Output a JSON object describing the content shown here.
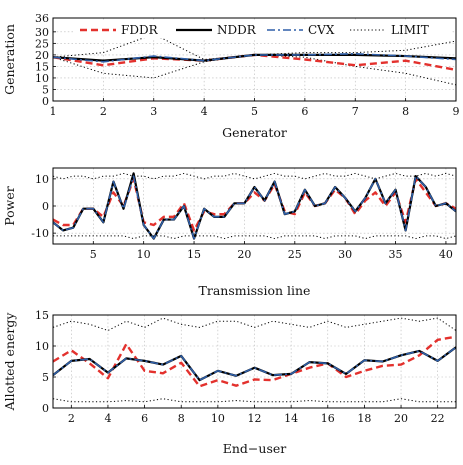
{
  "colors": {
    "fddr": "#e3312d",
    "nddr": "#000000",
    "cvx": "#2f5fa8",
    "limit": "#000000"
  },
  "legend": {
    "placement": "top, inside first panel",
    "entries": [
      {
        "key": "fddr",
        "label": "FDDR",
        "style": "dashed",
        "color": "#e3312d"
      },
      {
        "key": "nddr",
        "label": "NDDR",
        "style": "solid",
        "color": "#000000"
      },
      {
        "key": "cvx",
        "label": "CVX",
        "style": "dashdot",
        "color": "#2f5fa8"
      },
      {
        "key": "limit",
        "label": "LIMIT",
        "style": "dotted",
        "color": "#000000"
      }
    ]
  },
  "chart_data": [
    {
      "type": "line",
      "xlabel": "Generator",
      "ylabel": "Generation",
      "xlim": [
        1,
        9
      ],
      "ylim": [
        0,
        36
      ],
      "xticks": [
        1,
        2,
        3,
        4,
        5,
        6,
        7,
        8,
        9
      ],
      "yticks": [
        0,
        5,
        10,
        15,
        20,
        25,
        30,
        36
      ],
      "grid": true,
      "x": [
        1,
        2,
        3,
        4,
        5,
        6,
        7,
        8,
        9
      ],
      "series": [
        {
          "name": "FDDR",
          "key": "fddr",
          "values": [
            19,
            15.5,
            18.5,
            17.5,
            20,
            18,
            15.5,
            17.5,
            13.5
          ]
        },
        {
          "name": "NDDR",
          "key": "nddr",
          "values": [
            19,
            17.5,
            19,
            17.5,
            20,
            20,
            20,
            19.5,
            18.5
          ]
        },
        {
          "name": "CVX",
          "key": "cvx",
          "values": [
            19,
            17,
            19.5,
            17.5,
            20,
            20,
            20.5,
            19.5,
            18
          ]
        },
        {
          "name": "LIMIT",
          "key": "limit",
          "values": [
            19,
            21,
            29,
            18,
            20,
            21,
            21,
            22,
            26
          ]
        },
        {
          "name": "LIMIT",
          "key": "limit",
          "values": [
            19,
            12,
            10,
            17,
            20,
            19,
            15,
            12,
            7
          ]
        }
      ]
    },
    {
      "type": "line",
      "xlabel": "Transmission line",
      "ylabel": "Power",
      "xlim": [
        1,
        41
      ],
      "ylim": [
        -14,
        14
      ],
      "xticks": [
        5,
        10,
        15,
        20,
        25,
        30,
        35,
        40
      ],
      "yticks": [
        -10,
        0,
        10
      ],
      "grid": true,
      "x": [
        1,
        2,
        3,
        4,
        5,
        6,
        7,
        8,
        9,
        10,
        11,
        12,
        13,
        14,
        15,
        16,
        17,
        18,
        19,
        20,
        21,
        22,
        23,
        24,
        25,
        26,
        27,
        28,
        29,
        30,
        31,
        32,
        33,
        34,
        35,
        36,
        37,
        38,
        39,
        40,
        41
      ],
      "series": [
        {
          "name": "FDDR",
          "key": "fddr",
          "values": [
            -5,
            -7,
            -7,
            -1,
            -1,
            -4,
            5,
            0,
            10,
            -6,
            -7,
            -4,
            -4,
            1,
            -9,
            -2,
            -3,
            -3,
            1,
            1,
            5,
            2,
            8,
            -2,
            -3,
            5,
            0,
            1,
            6,
            3,
            -3,
            2,
            5,
            0,
            5,
            -6,
            10,
            5,
            0,
            1,
            -1
          ]
        },
        {
          "name": "NDDR",
          "key": "nddr",
          "values": [
            -6,
            -9,
            -8,
            -1,
            -1,
            -6,
            9,
            -1,
            12,
            -7,
            -12,
            -5,
            -5,
            0,
            -12,
            -1,
            -4,
            -4,
            1,
            1,
            7,
            2,
            9,
            -3,
            -2,
            6,
            0,
            1,
            7,
            3,
            -2,
            3,
            10,
            1,
            6,
            -9,
            11,
            7,
            0,
            1,
            -2
          ]
        },
        {
          "name": "CVX",
          "key": "cvx",
          "values": [
            -6,
            -9,
            -8,
            -1,
            -1,
            -6,
            9,
            -1,
            11,
            -7,
            -12,
            -5,
            -5,
            0,
            -12,
            -1,
            -4,
            -4,
            1,
            1,
            7,
            2,
            9,
            -3,
            -2,
            6,
            0,
            1,
            7,
            3,
            -2,
            3,
            10,
            1,
            6,
            -9,
            11,
            7,
            0,
            1,
            -2
          ]
        },
        {
          "name": "LIMIT",
          "key": "limit",
          "values": [
            11,
            10,
            11,
            11,
            10,
            11,
            11,
            12,
            11,
            11,
            10,
            11,
            11,
            12,
            11,
            10,
            11,
            11,
            12,
            11,
            10,
            11,
            12,
            11,
            11,
            10,
            11,
            12,
            11,
            11,
            12,
            11,
            10,
            11,
            12,
            11,
            11,
            12,
            11,
            12,
            11
          ]
        },
        {
          "name": "LIMIT",
          "key": "limit",
          "values": [
            -11,
            -11,
            -11,
            -11,
            -11,
            -11,
            -11,
            -11,
            -12,
            -11,
            -11,
            -11,
            -12,
            -11,
            -11,
            -11,
            -11,
            -12,
            -11,
            -11,
            -11,
            -11,
            -12,
            -11,
            -11,
            -11,
            -11,
            -12,
            -11,
            -11,
            -11,
            -12,
            -11,
            -11,
            -11,
            -11,
            -12,
            -11,
            -11,
            -12,
            -11
          ]
        }
      ]
    },
    {
      "type": "line",
      "xlabel": "End−user",
      "ylabel": "Allotted energy",
      "xlim": [
        1,
        23
      ],
      "ylim": [
        0,
        15
      ],
      "xticks": [
        2,
        4,
        6,
        8,
        10,
        12,
        14,
        16,
        18,
        20,
        22
      ],
      "yticks": [
        0,
        5,
        10,
        15
      ],
      "grid": true,
      "x": [
        1,
        2,
        3,
        4,
        5,
        6,
        7,
        8,
        9,
        10,
        11,
        12,
        13,
        14,
        15,
        16,
        17,
        18,
        19,
        20,
        21,
        22,
        23
      ],
      "series": [
        {
          "name": "FDDR",
          "key": "fddr",
          "values": [
            7.5,
            9.3,
            7.2,
            4.8,
            10.3,
            6,
            5.6,
            7.3,
            3.5,
            4.5,
            3.6,
            4.6,
            4.5,
            5.5,
            6.5,
            7.2,
            5,
            6,
            6.8,
            7,
            8.5,
            11,
            11.5
          ]
        },
        {
          "name": "NDDR",
          "key": "nddr",
          "values": [
            5.3,
            7.6,
            7.9,
            5.7,
            8,
            7.6,
            7,
            8.4,
            4.5,
            6,
            5.2,
            6.5,
            5.3,
            5.5,
            7.4,
            7.2,
            5.5,
            7.7,
            7.5,
            8.5,
            9.2,
            7.6,
            9.8
          ]
        },
        {
          "name": "CVX",
          "key": "cvx",
          "values": [
            5.3,
            7.6,
            7.9,
            5.7,
            8,
            7.6,
            7,
            8.4,
            4.5,
            6,
            5.2,
            6.5,
            5.3,
            5.5,
            7.4,
            7.2,
            5.5,
            7.7,
            7.5,
            8.5,
            9.2,
            7.6,
            9.8
          ]
        },
        {
          "name": "LIMIT",
          "key": "limit",
          "values": [
            13,
            14,
            13.5,
            12.5,
            14,
            13,
            14.5,
            13.5,
            13,
            14,
            14,
            13,
            14,
            13.5,
            13,
            14,
            13,
            13.5,
            14,
            14.5,
            14,
            14.5,
            12.5
          ]
        },
        {
          "name": "LIMIT",
          "key": "limit",
          "values": [
            1.5,
            1,
            1,
            1,
            1.2,
            1,
            1.5,
            1,
            1,
            1,
            1.2,
            1,
            1,
            1,
            1.2,
            1,
            1,
            1,
            1,
            1.5,
            1,
            1,
            1
          ]
        }
      ]
    }
  ]
}
